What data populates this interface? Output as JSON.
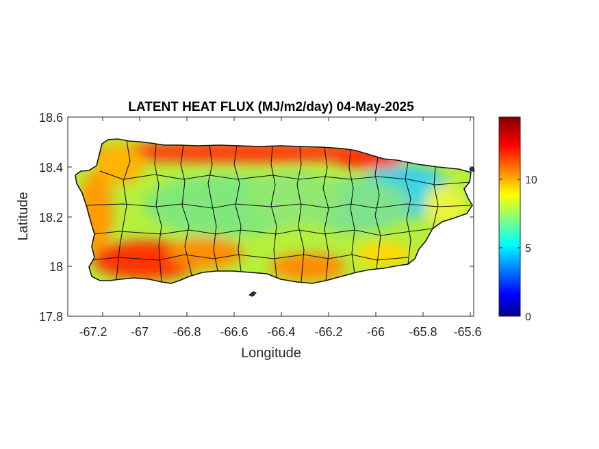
{
  "chart_data": {
    "type": "heatmap",
    "title": "LATENT HEAT FLUX (MJ/m2/day) 04-May-2025",
    "xlabel": "Longitude",
    "ylabel": "Latitude",
    "xlim": [
      -67.3,
      -65.58
    ],
    "ylim": [
      17.8,
      18.6
    ],
    "xticks": [
      -67.2,
      -67,
      -66.8,
      -66.6,
      -66.4,
      -66.2,
      -66,
      -65.8,
      -65.6
    ],
    "xtick_labels": [
      "-67.2",
      "-67",
      "-66.8",
      "-66.6",
      "-66.4",
      "-66.2",
      "-66",
      "-65.8",
      "-65.6"
    ],
    "yticks": [
      17.8,
      18,
      18.2,
      18.4,
      18.6
    ],
    "ytick_labels": [
      "17.8",
      "18",
      "18.2",
      "18.4",
      "18.6"
    ],
    "colorbar": {
      "colormap": "jet",
      "range": [
        0,
        14.5
      ],
      "ticks": [
        0,
        5,
        10
      ],
      "tick_labels": [
        "0",
        "5",
        "10"
      ]
    },
    "regions": [
      {
        "area": "north coast",
        "approx_value": 13
      },
      {
        "area": "southwest coast",
        "approx_value": 12.5
      },
      {
        "area": "west coast",
        "approx_value": 11
      },
      {
        "area": "central interior",
        "approx_value": 7
      },
      {
        "area": "northeast interior",
        "approx_value": 5.5
      },
      {
        "area": "south coast east",
        "approx_value": 9
      }
    ],
    "grid": false
  }
}
